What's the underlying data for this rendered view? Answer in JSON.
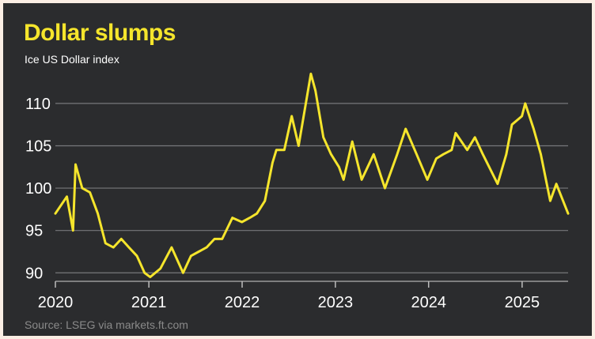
{
  "header": {
    "title": "Dollar slumps",
    "subtitle": "Ice US Dollar index"
  },
  "footer": {
    "source": "Source: LSEG via markets.ft.com"
  },
  "colors": {
    "background": "#2b2c2e",
    "line": "#f5e52c",
    "title": "#f5e52c"
  },
  "chart_data": {
    "type": "line",
    "title": "Dollar slumps",
    "subtitle": "Ice US Dollar index",
    "xlabel": "",
    "ylabel": "",
    "ylim": [
      89,
      114
    ],
    "xlim": [
      "2020-01-01",
      "2025-06-30"
    ],
    "yticks": [
      90,
      95,
      100,
      105,
      110
    ],
    "ytick_labels": [
      "90",
      "95",
      "100",
      "105",
      "110"
    ],
    "xticks": [
      "2020",
      "2021",
      "2022",
      "2023",
      "2024",
      "2025"
    ],
    "grid": true,
    "legend": "none",
    "series": [
      {
        "x": [
          "2020-01-01",
          "2020-02-15",
          "2020-03-10",
          "2020-03-20",
          "2020-04-15",
          "2020-05-15",
          "2020-06-15",
          "2020-07-15",
          "2020-08-15",
          "2020-09-15",
          "2020-10-15",
          "2020-11-15",
          "2020-12-15",
          "2021-01-06",
          "2021-02-15",
          "2021-03-31",
          "2021-05-15",
          "2021-06-15",
          "2021-07-15",
          "2021-08-15",
          "2021-09-15",
          "2021-10-15",
          "2021-11-24",
          "2021-12-31",
          "2022-01-31",
          "2022-02-28",
          "2022-03-31",
          "2022-04-30",
          "2022-05-15",
          "2022-06-15",
          "2022-07-14",
          "2022-08-10",
          "2022-09-27",
          "2022-10-15",
          "2022-11-15",
          "2022-12-15",
          "2023-01-15",
          "2023-02-02",
          "2023-03-08",
          "2023-04-14",
          "2023-05-31",
          "2023-07-14",
          "2023-08-31",
          "2023-10-03",
          "2023-11-15",
          "2023-12-27",
          "2024-01-31",
          "2024-02-28",
          "2024-03-31",
          "2024-04-16",
          "2024-05-31",
          "2024-06-30",
          "2024-07-31",
          "2024-09-27",
          "2024-10-31",
          "2024-11-22",
          "2024-12-31",
          "2025-01-13",
          "2025-02-15",
          "2025-03-15",
          "2025-04-21",
          "2025-05-15",
          "2025-06-30"
        ],
        "y": [
          97.0,
          99.0,
          95.0,
          102.8,
          100.0,
          99.5,
          97.0,
          93.5,
          93.0,
          94.0,
          93.0,
          92.0,
          90.0,
          89.5,
          90.5,
          93.0,
          90.0,
          92.0,
          92.5,
          93.0,
          94.0,
          94.0,
          96.5,
          96.0,
          96.5,
          97.0,
          98.5,
          103.0,
          104.5,
          104.5,
          108.5,
          105.0,
          113.5,
          111.5,
          106.0,
          104.0,
          102.5,
          101.0,
          105.5,
          101.0,
          104.0,
          100.0,
          104.0,
          107.0,
          104.0,
          101.0,
          103.5,
          104.0,
          104.5,
          106.5,
          104.5,
          106.0,
          104.0,
          100.5,
          104.0,
          107.5,
          108.5,
          110.0,
          107.0,
          104.0,
          98.5,
          100.5,
          97.0
        ]
      }
    ]
  }
}
